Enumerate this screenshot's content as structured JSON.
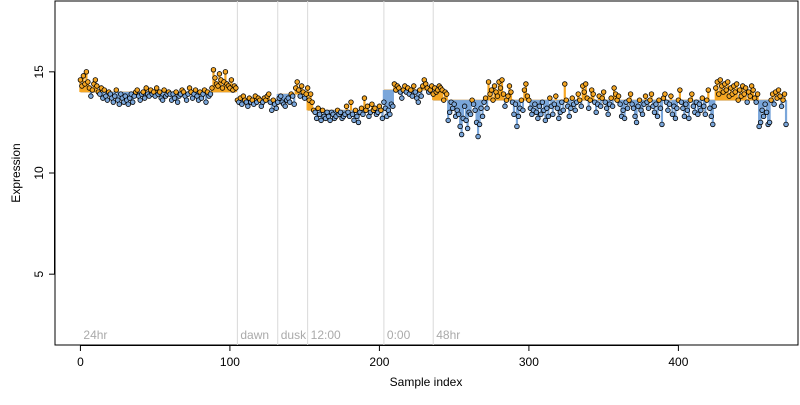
{
  "chart_data": {
    "type": "scatter",
    "xlabel": "Sample index",
    "ylabel": "Expression",
    "xlim": [
      -17,
      480
    ],
    "ylim": [
      1.5,
      18.5
    ],
    "x_ticks": [
      0,
      100,
      200,
      300,
      400
    ],
    "y_ticks": [
      5,
      10,
      15
    ],
    "grid": false,
    "colors": {
      "above_baseline": "#f5a623",
      "below_baseline": "#7aa6da",
      "point_stroke": "#000000",
      "separator": "#d9d9d9",
      "condition_label": "#aaaaaa"
    },
    "conditions": [
      {
        "label": "24hr",
        "start": 0
      },
      {
        "label": "dawn",
        "start": 105
      },
      {
        "label": "dusk",
        "start": 132
      },
      {
        "label": "12:00",
        "start": 152
      },
      {
        "label": "0:00",
        "start": 203
      },
      {
        "label": "48hr",
        "start": 236
      }
    ],
    "baselines": [
      {
        "x_start": 0,
        "x_end": 104,
        "value": 14.0
      },
      {
        "x_start": 105,
        "x_end": 131,
        "value": 13.6
      },
      {
        "x_start": 132,
        "x_end": 151,
        "value": 13.9
      },
      {
        "x_start": 152,
        "x_end": 202,
        "value": 13.1
      },
      {
        "x_start": 203,
        "x_end": 235,
        "value": 14.1
      },
      {
        "x_start": 236,
        "x_end": 463,
        "value": 13.6
      }
    ],
    "series": [
      {
        "x_start": 0,
        "x_step": 1,
        "values": [
          14.6,
          14.3,
          14.8,
          14.4,
          15.0,
          14.5,
          14.2,
          13.8,
          14.1,
          14.4,
          14.6,
          14.3,
          14.0,
          13.9,
          14.2,
          13.7,
          14.1,
          13.8,
          13.6,
          14.0,
          13.9,
          13.7,
          13.5,
          13.8,
          14.1,
          13.6,
          13.4,
          13.9,
          13.7,
          13.5,
          13.8,
          13.6,
          13.4,
          13.7,
          13.9,
          13.5,
          13.8,
          14.0,
          14.1,
          13.8,
          13.6,
          13.9,
          14.0,
          13.7,
          14.2,
          13.9,
          13.8,
          14.1,
          13.9,
          14.0,
          13.8,
          14.2,
          13.9,
          14.0,
          13.7,
          13.6,
          14.1,
          13.8,
          13.9,
          14.0,
          13.9,
          13.6,
          13.9,
          13.7,
          14.0,
          13.5,
          13.8,
          13.9,
          14.1,
          14.0,
          13.8,
          13.6,
          13.9,
          14.2,
          14.0,
          13.7,
          13.9,
          14.1,
          13.8,
          13.6,
          14.0,
          13.7,
          13.9,
          14.1,
          13.5,
          14.0,
          13.8,
          13.9,
          14.2,
          15.1,
          14.7,
          14.4,
          14.3,
          14.9,
          14.6,
          14.2,
          14.5,
          15.0,
          14.4,
          14.3,
          14.2,
          14.6,
          14.1,
          14.3,
          14.2,
          13.6,
          13.5,
          13.7,
          13.4,
          13.8,
          13.6,
          13.5,
          13.3,
          13.7,
          13.5,
          13.6,
          13.4,
          13.8,
          13.5,
          13.7,
          13.6,
          13.3,
          13.5,
          13.7,
          13.6,
          13.8,
          13.9,
          13.5,
          13.1,
          13.6,
          13.4,
          13.2,
          13.5,
          13.7,
          13.8,
          13.5,
          13.4,
          13.3,
          13.6,
          13.7,
          13.5,
          13.9,
          13.8,
          13.4,
          14.2,
          14.5,
          14.1,
          13.8,
          14.3,
          14.0,
          13.7,
          13.9,
          14.2,
          13.6,
          13.9,
          13.5,
          13.1,
          13.0,
          12.7,
          13.2,
          12.9,
          12.6,
          13.1,
          12.8,
          12.7,
          13.0,
          12.8,
          12.6,
          13.0,
          12.9,
          12.7,
          12.8,
          13.1,
          12.9,
          13.0,
          12.7,
          12.8,
          12.9,
          13.3,
          13.0,
          12.8,
          13.5,
          12.9,
          12.6,
          13.1,
          12.8,
          12.5,
          13.0,
          13.2,
          12.9,
          13.7,
          13.1,
          13.3,
          12.8,
          13.0,
          13.4,
          13.1,
          13.2,
          12.9,
          13.0,
          13.3,
          13.1,
          12.7,
          13.5,
          13.2,
          12.8,
          13.1,
          12.9,
          13.4,
          13.3,
          14.4,
          14.1,
          14.3,
          14.2,
          14.0,
          13.7,
          14.1,
          14.3,
          14.0,
          14.2,
          13.9,
          14.1,
          13.8,
          14.3,
          14.0,
          13.7,
          13.5,
          14.1,
          13.8,
          14.3,
          14.6,
          14.4,
          14.2,
          14.0,
          14.1,
          14.3,
          13.9,
          14.2,
          14.0,
          14.1,
          14.3,
          14.2,
          14.1,
          13.6,
          14.0,
          13.9,
          12.6,
          13.0,
          13.5,
          13.2,
          13.4,
          12.8,
          13.1,
          12.9,
          12.3,
          11.9,
          12.7,
          13.3,
          12.6,
          12.2,
          13.0,
          12.9,
          13.6,
          13.4,
          13.1,
          12.5,
          11.8,
          12.4,
          13.2,
          12.8,
          13.5,
          13.7,
          13.2,
          14.5,
          13.9,
          14.1,
          13.6,
          14.3,
          14.0,
          13.8,
          14.5,
          14.2,
          14.6,
          13.9,
          13.3,
          13.6,
          13.8,
          14.3,
          14.0,
          13.5,
          12.9,
          13.4,
          12.3,
          12.8,
          13.2,
          13.6,
          13.1,
          14.1,
          14.4,
          13.8,
          13.6,
          13.2,
          12.9,
          13.1,
          13.4,
          13.0,
          12.7,
          13.3,
          12.9,
          13.5,
          13.1,
          12.6,
          13.2,
          12.8,
          13.7,
          13.3,
          12.9,
          13.4,
          13.8,
          13.2,
          12.7,
          13.0,
          13.5,
          13.1,
          14.4,
          13.6,
          13.3,
          12.8,
          13.2,
          13.7,
          13.4,
          13.1,
          13.5,
          13.9,
          13.6,
          13.3,
          14.3,
          14.0,
          14.4,
          13.7,
          13.2,
          13.6,
          14.1,
          13.9,
          13.5,
          13.0,
          13.4,
          13.8,
          13.3,
          13.7,
          14.0,
          13.5,
          13.2,
          12.9,
          13.4,
          13.7,
          13.3,
          14.2,
          13.9,
          13.6,
          13.8,
          13.4,
          12.8,
          13.1,
          12.7,
          13.5,
          13.2,
          13.6,
          13.9,
          13.4,
          13.2,
          12.8,
          12.5,
          13.3,
          13.6,
          13.1,
          12.9,
          13.4,
          13.8,
          13.5,
          13.2,
          13.6,
          13.9,
          13.3,
          13.0,
          13.4,
          12.8,
          13.6,
          13.2,
          12.4,
          13.7,
          13.9,
          13.5,
          13.1,
          13.4,
          13.8,
          12.9,
          13.3,
          12.7,
          13.2,
          13.6,
          14.1,
          13.5,
          13.2,
          12.8,
          13.4,
          13.1,
          12.7,
          13.6,
          13.9,
          13.3,
          13.0,
          13.5,
          12.9,
          13.4,
          13.1,
          13.7,
          13.3,
          12.9,
          13.6,
          14.1,
          13.2,
          12.8,
          12.4,
          13.3,
          14.2,
          14.5,
          13.9,
          14.6,
          14.3,
          14.0,
          14.4,
          14.1,
          14.5,
          13.8,
          14.2,
          13.9,
          14.3,
          14.0,
          14.4,
          13.6,
          14.1,
          13.8,
          14.3,
          13.9,
          14.2,
          13.5,
          14.0,
          13.8,
          14.3,
          14.1,
          13.7,
          13.5,
          13.9,
          12.3,
          12.5,
          13.1,
          12.8,
          13.4,
          13.0,
          12.4,
          12.5,
          13.6,
          13.9,
          13.4,
          14.0,
          13.7,
          14.1,
          13.8,
          13.3,
          13.6,
          13.9,
          12.4
        ]
      }
    ]
  }
}
